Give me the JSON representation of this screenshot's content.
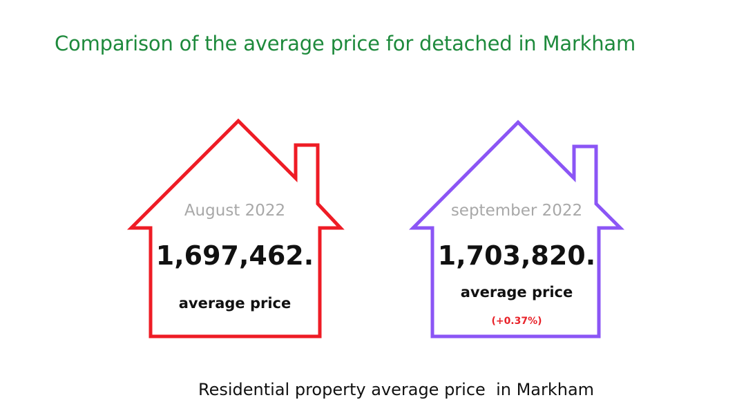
{
  "title": "Comparison of the average price for detached in Markham",
  "houses": [
    {
      "period": "August 2022",
      "price": "1,697,462.",
      "label": "average price",
      "change": "",
      "outline_color": "#ee1c25"
    },
    {
      "period": "september 2022",
      "price": "1,703,820.",
      "label": "average price",
      "change": "(+0.37%)",
      "outline_color": "#8b55f5"
    }
  ],
  "change_color": "#e8232a",
  "title_color": "#1e8a3c",
  "footer": "Residential property average price  in Markham"
}
